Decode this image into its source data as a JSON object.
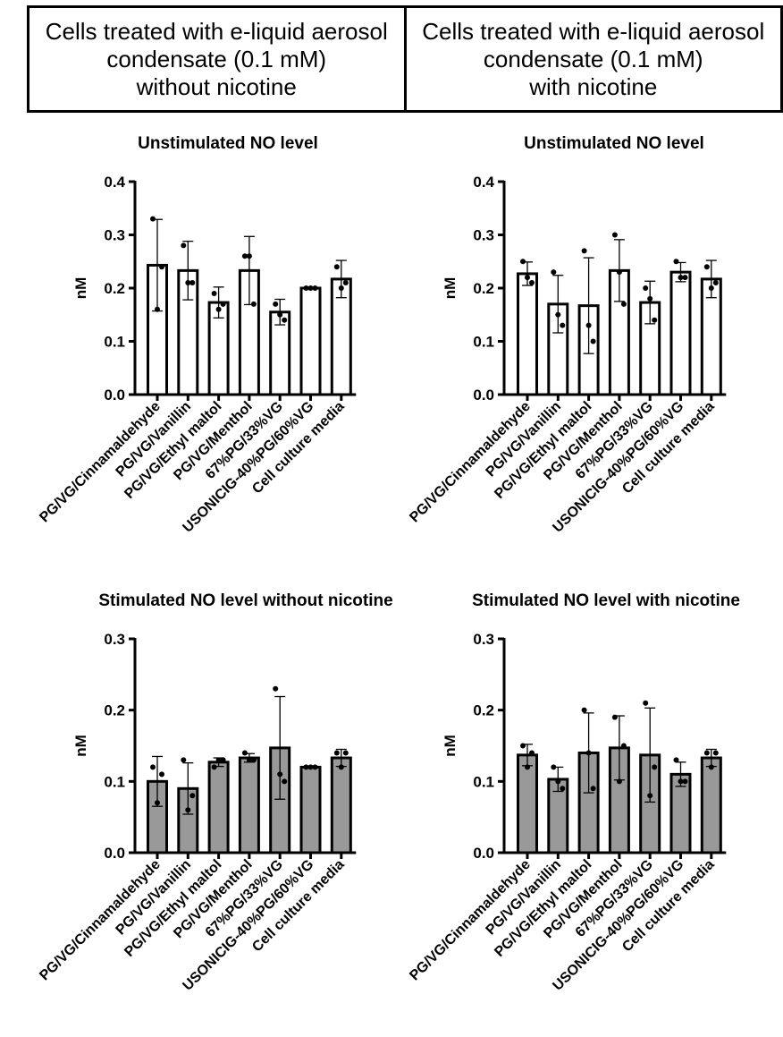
{
  "header": {
    "left": [
      "Cells treated with e-liquid aerosol",
      "condensate (0.1 mM)",
      "without nicotine"
    ],
    "right": [
      "Cells treated with e-liquid aerosol",
      "condensate (0.1 mM)",
      "with nicotine"
    ]
  },
  "colors": {
    "unstimulated_bar": "#ffffff",
    "stimulated_bar": "#999999",
    "ink": "#000000"
  },
  "chart_data": [
    {
      "type": "bar",
      "title": "Unstimulated NO level",
      "ylabel": "nM",
      "ylim": [
        0,
        0.4
      ],
      "yticks": [
        "0.0",
        "0.1",
        "0.2",
        "0.3",
        "0.4"
      ],
      "categories": [
        "PG/VG/Cinnamaldehyde",
        "PG/VG/Vanillin",
        "PG/VG/Ethyl maltol",
        "PG/VG/Menthol",
        "67%PG/33%VG",
        "USONICIG-40%PG/60%VG",
        "Cell culture media"
      ],
      "values": [
        0.243,
        0.233,
        0.173,
        0.233,
        0.155,
        0.2,
        0.217
      ],
      "error": [
        0.086,
        0.055,
        0.029,
        0.064,
        0.024,
        0.001,
        0.035
      ],
      "points": [
        [
          0.33,
          0.16,
          0.24
        ],
        [
          0.28,
          0.21,
          0.21
        ],
        [
          0.19,
          0.16,
          0.17
        ],
        [
          0.26,
          0.26,
          0.17
        ],
        [
          0.17,
          0.15,
          0.14
        ],
        [
          0.2,
          0.2,
          0.2
        ],
        [
          0.24,
          0.2,
          0.21
        ]
      ],
      "bar_color": "#ffffff"
    },
    {
      "type": "bar",
      "title": "Unstimulated NO level",
      "ylabel": "nM",
      "ylim": [
        0,
        0.4
      ],
      "yticks": [
        "0.0",
        "0.1",
        "0.2",
        "0.3",
        "0.4"
      ],
      "categories": [
        "PG/VG/Cinnamaldehyde",
        "PG/VG/Vanillin",
        "PG/VG/Ethyl maltol",
        "PG/VG/Menthol",
        "67%PG/33%VG",
        "USONICIG-40%PG/60%VG",
        "Cell culture media"
      ],
      "values": [
        0.227,
        0.17,
        0.167,
        0.233,
        0.173,
        0.23,
        0.217
      ],
      "error": [
        0.022,
        0.054,
        0.09,
        0.058,
        0.04,
        0.018,
        0.035
      ],
      "points": [
        [
          0.25,
          0.22,
          0.21
        ],
        [
          0.23,
          0.15,
          0.13
        ],
        [
          0.27,
          0.13,
          0.1
        ],
        [
          0.3,
          0.23,
          0.17
        ],
        [
          0.2,
          0.18,
          0.14
        ],
        [
          0.25,
          0.22,
          0.22
        ],
        [
          0.24,
          0.2,
          0.21
        ]
      ],
      "bar_color": "#ffffff"
    },
    {
      "type": "bar",
      "title": "Stimulated NO level without nicotine",
      "ylabel": "nM",
      "ylim": [
        0,
        0.3
      ],
      "yticks": [
        "0.0",
        "0.1",
        "0.2",
        "0.3"
      ],
      "categories": [
        "PG/VG/Cinnamaldehyde",
        "PG/VG/Vanillin",
        "PG/VG/Ethyl maltol",
        "PG/VG/Menthol",
        "67%PG/33%VG",
        "USONICIG-40%PG/60%VG",
        "Cell culture media"
      ],
      "values": [
        0.1,
        0.09,
        0.127,
        0.133,
        0.147,
        0.12,
        0.133
      ],
      "error": [
        0.035,
        0.036,
        0.006,
        0.006,
        0.072,
        0.001,
        0.012
      ],
      "points": [
        [
          0.12,
          0.07,
          0.11
        ],
        [
          0.13,
          0.06,
          0.08
        ],
        [
          0.12,
          0.13,
          0.13
        ],
        [
          0.14,
          0.13,
          0.13
        ],
        [
          0.23,
          0.11,
          0.1
        ],
        [
          0.12,
          0.12,
          0.12
        ],
        [
          0.14,
          0.12,
          0.14
        ]
      ],
      "bar_color": "#999999"
    },
    {
      "type": "bar",
      "title": "Stimulated NO level with nicotine",
      "ylabel": "nM",
      "ylim": [
        0,
        0.3
      ],
      "yticks": [
        "0.0",
        "0.1",
        "0.2",
        "0.3"
      ],
      "categories": [
        "PG/VG/Cinnamaldehyde",
        "PG/VG/Vanillin",
        "PG/VG/Ethyl maltol",
        "PG/VG/Menthol",
        "67%PG/33%VG",
        "USONICIG-40%PG/60%VG",
        "Cell culture media"
      ],
      "values": [
        0.137,
        0.103,
        0.14,
        0.147,
        0.137,
        0.11,
        0.133
      ],
      "error": [
        0.015,
        0.017,
        0.056,
        0.045,
        0.066,
        0.017,
        0.012
      ],
      "points": [
        [
          0.15,
          0.12,
          0.14
        ],
        [
          0.12,
          0.1,
          0.09
        ],
        [
          0.2,
          0.14,
          0.09
        ],
        [
          0.19,
          0.1,
          0.15
        ],
        [
          0.21,
          0.08,
          0.12
        ],
        [
          0.13,
          0.1,
          0.1
        ],
        [
          0.14,
          0.12,
          0.14
        ]
      ],
      "bar_color": "#999999"
    }
  ]
}
